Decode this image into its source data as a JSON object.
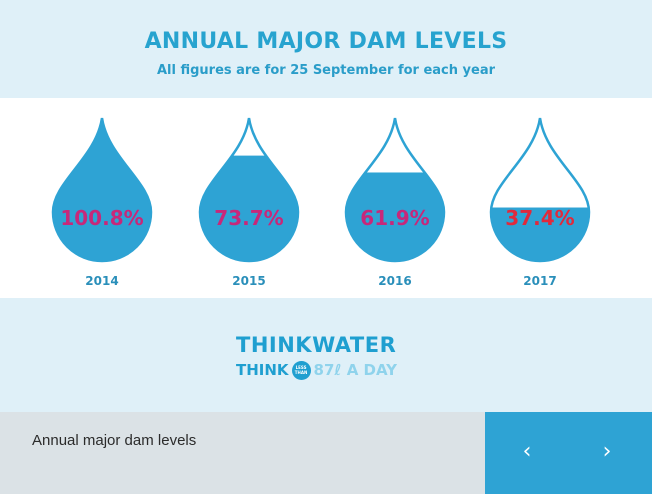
{
  "chart_data": {
    "type": "pictogram",
    "title": "ANNUAL MAJOR DAM LEVELS",
    "subtitle": "All figures are for 25 September for each year",
    "categories": [
      "2014",
      "2015",
      "2016",
      "2017"
    ],
    "values": [
      100.8,
      73.7,
      61.9,
      37.4
    ],
    "value_labels": [
      "100.8%",
      "73.7%",
      "61.9%",
      "37.4%"
    ],
    "unit": "%",
    "label_colors": [
      "#c7287a",
      "#c7287a",
      "#c7287a",
      "#e02a3c"
    ],
    "fill_color": "#2ea3d4"
  },
  "logo": {
    "line1_a": "THINK",
    "line1_b": "WATER",
    "line2_a": "THINK",
    "badge_top": "LESS",
    "badge_bottom": "THAN",
    "line2_b": "87",
    "line2_c": "ℓ A DAY"
  },
  "caption": "Annual major dam levels",
  "nav": {
    "prev": "‹",
    "next": "›"
  }
}
